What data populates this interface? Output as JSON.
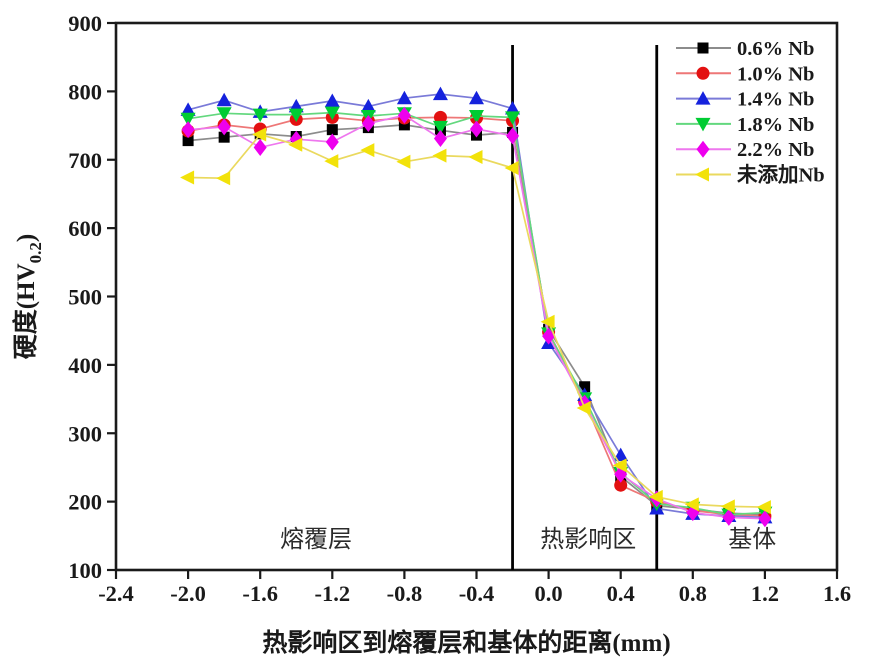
{
  "figure": {
    "background": "#ffffff",
    "frame_color": "#1a1a1a"
  },
  "chart_data": {
    "type": "line",
    "title": "",
    "xlabel": "热影响区到熔覆层和基体的距离(mm)",
    "ylabel": {
      "pre": "硬度(HV",
      "sub": "0.2",
      "post": ")"
    },
    "xlim": [
      -2.4,
      1.6
    ],
    "ylim": [
      100,
      900
    ],
    "grid": false,
    "legend_position": "top-right",
    "xticks": [
      -2.4,
      -2.0,
      -1.6,
      -1.2,
      -0.8,
      -0.4,
      0.0,
      0.4,
      0.8,
      1.2,
      1.6
    ],
    "xtick_labels": [
      "-2.4",
      "-2.0",
      "-1.6",
      "-1.2",
      "-0.8",
      "-0.4",
      "0.0",
      "0.4",
      "0.8",
      "1.2",
      "1.6"
    ],
    "yticks": [
      100,
      200,
      300,
      400,
      500,
      600,
      700,
      800,
      900
    ],
    "ytick_labels": [
      "100",
      "200",
      "300",
      "400",
      "500",
      "600",
      "700",
      "800",
      "900"
    ],
    "x": [
      -2.0,
      -1.8,
      -1.6,
      -1.4,
      -1.2,
      -1.0,
      -0.8,
      -0.6,
      -0.4,
      -0.2,
      0.0,
      0.2,
      0.4,
      0.6,
      0.8,
      1.0,
      1.2
    ],
    "series": [
      {
        "name": "0.6% Nb",
        "marker": "square",
        "color": "#000000",
        "line_color": "#8c8c8c",
        "values": [
          728,
          733,
          738,
          734,
          744,
          747,
          751,
          743,
          736,
          740,
          452,
          368,
          237,
          194,
          189,
          183,
          181
        ]
      },
      {
        "name": "1.0% Nb",
        "marker": "circle",
        "color": "#e31111",
        "line_color": "#ee7777",
        "values": [
          742,
          751,
          745,
          759,
          762,
          757,
          761,
          762,
          761,
          757,
          448,
          346,
          224,
          200,
          187,
          181,
          179
        ]
      },
      {
        "name": "1.4% Nb",
        "marker": "triangle-up",
        "color": "#1522dd",
        "line_color": "#7a7ad8",
        "values": [
          773,
          787,
          770,
          778,
          786,
          778,
          790,
          796,
          790,
          775,
          432,
          356,
          268,
          190,
          182,
          179,
          177
        ]
      },
      {
        "name": "1.8% Nb",
        "marker": "triangle-down",
        "color": "#00cc33",
        "line_color": "#63d87e",
        "values": [
          760,
          768,
          766,
          766,
          769,
          764,
          768,
          748,
          764,
          762,
          446,
          351,
          242,
          197,
          191,
          181,
          184
        ]
      },
      {
        "name": "2.2% Nb",
        "marker": "diamond",
        "color": "#ee00ee",
        "line_color": "#ee77ee",
        "values": [
          744,
          748,
          718,
          730,
          726,
          753,
          765,
          731,
          745,
          735,
          442,
          344,
          240,
          204,
          184,
          177,
          175
        ]
      },
      {
        "name": "未添加Nb",
        "marker": "triangle-left",
        "color": "#f2e20a",
        "line_color": "#ead95e",
        "values": [
          674,
          673,
          737,
          722,
          698,
          714,
          697,
          706,
          704,
          688,
          463,
          337,
          253,
          207,
          196,
          193,
          192
        ]
      }
    ],
    "boundary_lines": [
      -0.2,
      0.6
    ],
    "region_labels": [
      {
        "label": "熔覆层",
        "x": -1.29
      },
      {
        "label": "热影响区",
        "x": 0.22
      },
      {
        "label": "基体",
        "x": 1.13
      }
    ]
  }
}
